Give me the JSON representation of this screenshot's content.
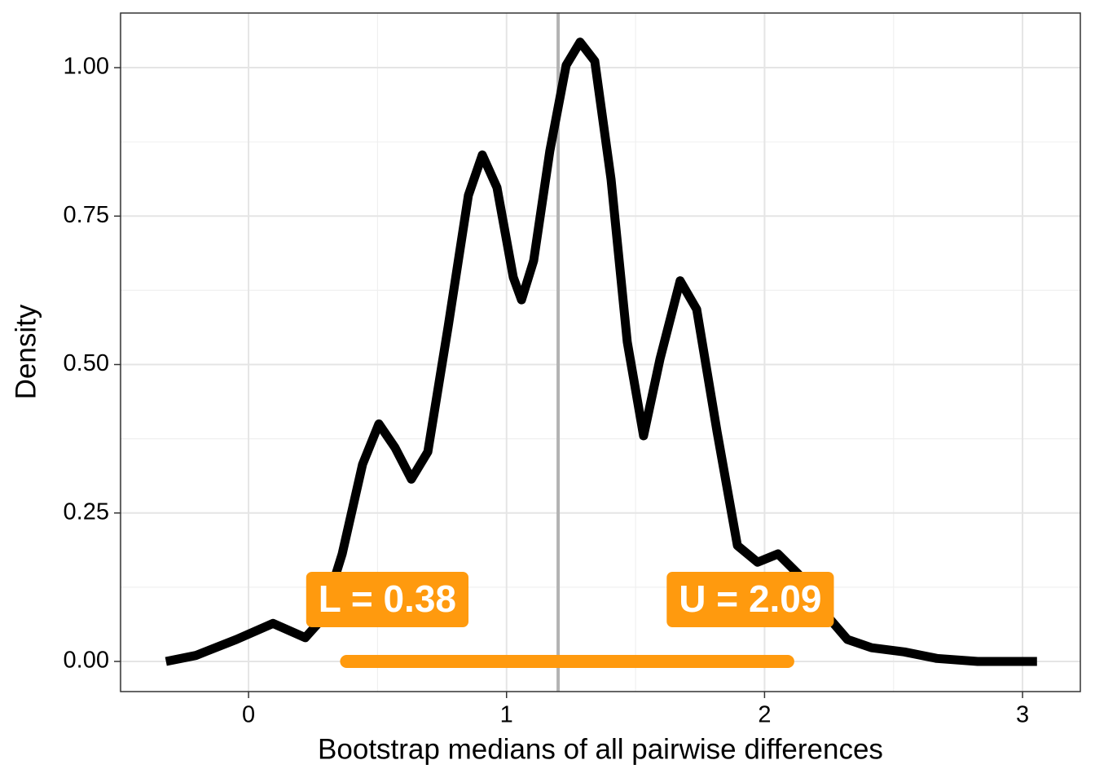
{
  "chart_data": {
    "type": "line",
    "xlabel": "Bootstrap medians of all pairwise differences",
    "ylabel": "Density",
    "xlim": [
      -0.496,
      3.224
    ],
    "ylim": [
      -0.0508,
      1.092
    ],
    "xticks": [
      0,
      1,
      2,
      3
    ],
    "yticks": [
      {
        "value": 0,
        "label": "0.00"
      },
      {
        "value": 0.25,
        "label": "0.25"
      },
      {
        "value": 0.5,
        "label": "0.50"
      },
      {
        "value": 0.75,
        "label": "0.75"
      },
      {
        "value": 1,
        "label": "1.00"
      }
    ],
    "grid": true,
    "series": [
      {
        "color": "#000000",
        "x": [
          -0.32,
          -0.205,
          -0.047,
          0.095,
          0.22,
          0.284,
          0.363,
          0.442,
          0.505,
          0.568,
          0.631,
          0.695,
          0.774,
          0.852,
          0.906,
          0.963,
          1.026,
          1.058,
          1.105,
          1.168,
          1.231,
          1.285,
          1.342,
          1.405,
          1.468,
          1.531,
          1.595,
          1.673,
          1.737,
          1.816,
          1.895,
          1.973,
          2.052,
          2.131,
          2.226,
          2.321,
          2.415,
          2.542,
          2.668,
          2.826,
          3.056
        ],
        "values": [
          0,
          0.01,
          0.037,
          0.064,
          0.04,
          0.071,
          0.181,
          0.332,
          0.4,
          0.36,
          0.307,
          0.353,
          0.565,
          0.785,
          0.853,
          0.798,
          0.647,
          0.609,
          0.675,
          0.86,
          1.004,
          1.043,
          1.011,
          0.812,
          0.538,
          0.38,
          0.51,
          0.641,
          0.593,
          0.387,
          0.195,
          0.167,
          0.181,
          0.147,
          0.085,
          0.037,
          0.023,
          0.016,
          0.005,
          0,
          0
        ]
      }
    ],
    "vline": {
      "value": 1.2,
      "color": "#b3b3b3"
    },
    "interval": {
      "lower": 0.38,
      "upper": 2.09,
      "color": "#ff9a0e",
      "lower_label": "L =  0.38",
      "upper_label": "U =  2.09"
    }
  }
}
